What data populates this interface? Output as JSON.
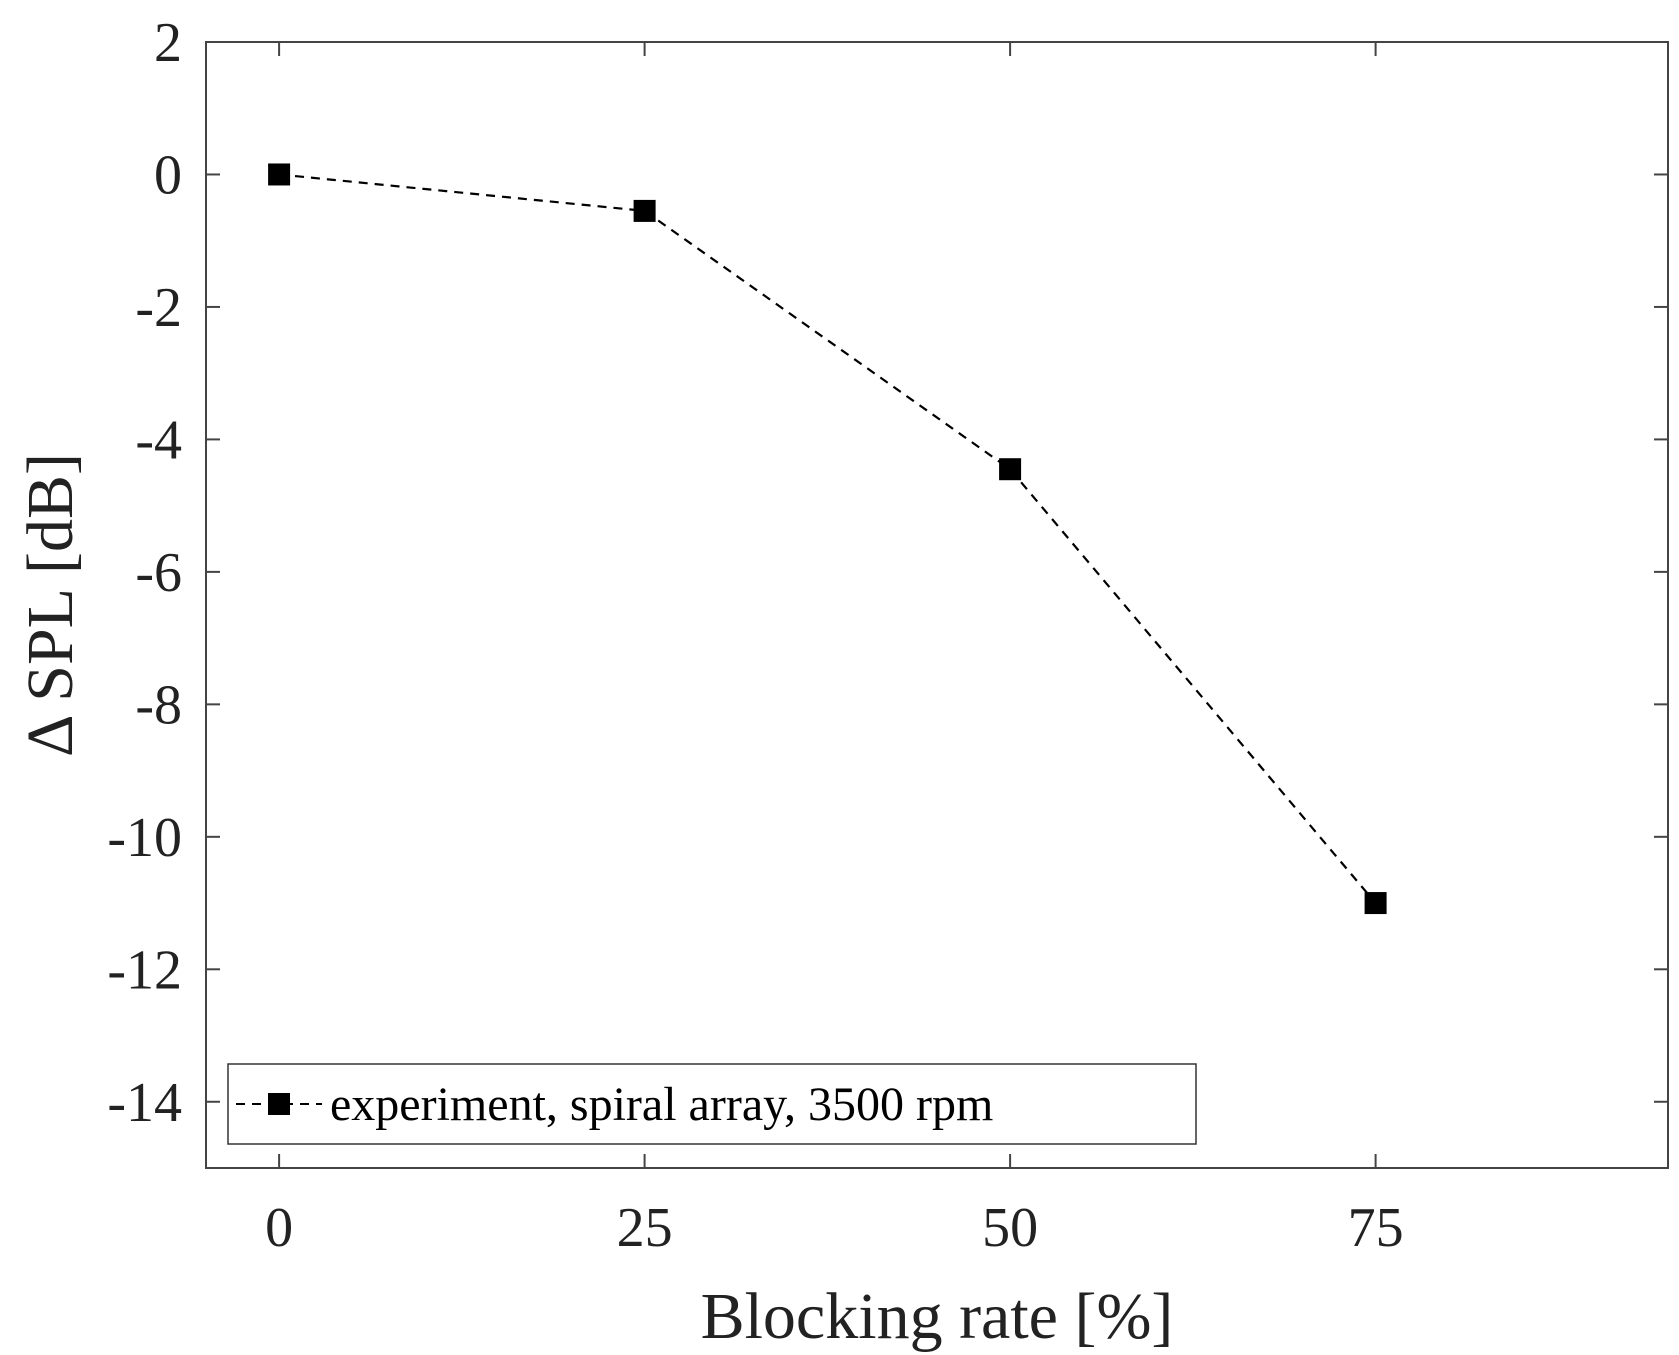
{
  "chart_data": {
    "type": "line",
    "title": "",
    "xlabel": "Blocking rate [%]",
    "ylabel": "Δ SPL [dB]",
    "xlim": [
      -5,
      95
    ],
    "ylim": [
      -15,
      2
    ],
    "x_ticks": [
      0,
      25,
      50,
      75
    ],
    "x_tick_labels": [
      "0",
      "25",
      "50",
      "75"
    ],
    "y_ticks": [
      2,
      0,
      -2,
      -4,
      -6,
      -8,
      -10,
      -12,
      -14
    ],
    "y_tick_labels": [
      "2",
      "0",
      "-2",
      "-4",
      "-6",
      "-8",
      "-10",
      "-12",
      "-14"
    ],
    "grid": false,
    "legend_position": "bottom-left",
    "series": [
      {
        "name": "experiment, spiral array, 3500 rpm",
        "x": [
          0,
          25,
          50,
          75
        ],
        "y": [
          0,
          -0.55,
          -4.45,
          -11.0
        ],
        "line_style": "dashed",
        "marker": "square",
        "color": "#000000"
      }
    ]
  }
}
